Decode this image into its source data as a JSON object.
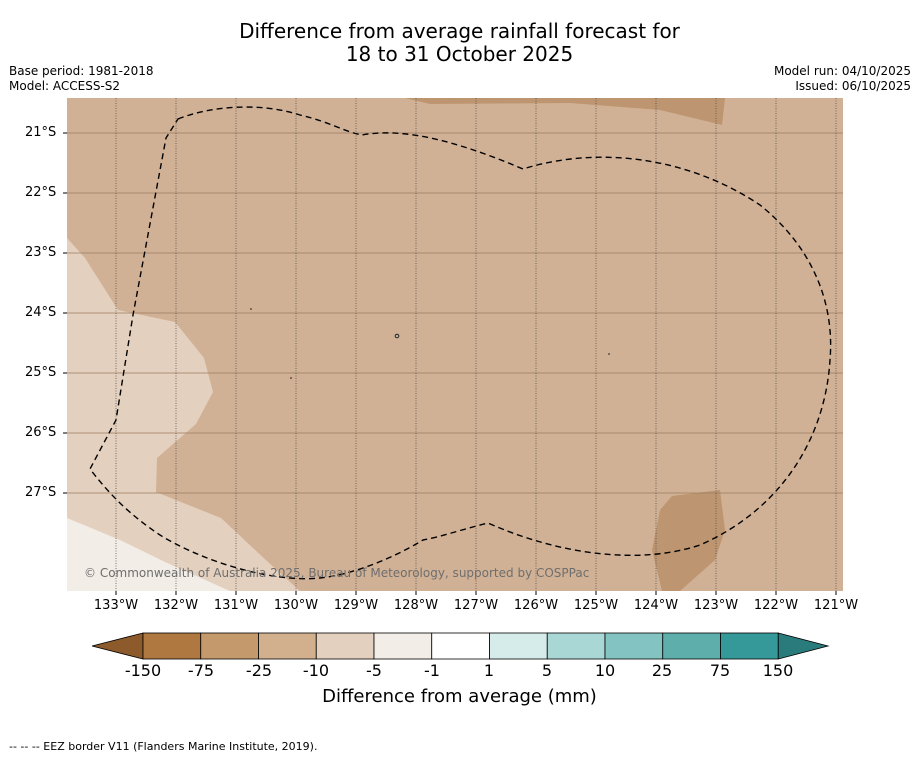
{
  "title_line1": "Difference from average rainfall forecast for",
  "title_line2": "18 to 31 October 2025",
  "base_period": "Base period: 1981-2018",
  "model": "Model: ACCESS-S2",
  "model_run": "Model run: 04/10/2025",
  "issued": "Issued: 06/10/2025",
  "copyright": "© Commonwealth of Australia 2025, Bureau of Meteorology, supported by COSPPac",
  "lon_labels": [
    "133°W",
    "132°W",
    "131°W",
    "130°W",
    "129°W",
    "128°W",
    "127°W",
    "126°W",
    "125°W",
    "124°W",
    "123°W",
    "122°W",
    "121°W"
  ],
  "lat_labels": [
    "21°S",
    "22°S",
    "23°S",
    "24°S",
    "25°S",
    "26°S",
    "27°S"
  ],
  "colorbar": {
    "labels": [
      "-150",
      "-75",
      "-25",
      "-10",
      "-5",
      "-1",
      "1",
      "5",
      "10",
      "25",
      "75",
      "150"
    ],
    "colors": [
      "#8c5a2b",
      "#ae7840",
      "#c49a6c",
      "#d2b08e",
      "#e4d0be",
      "#f2ede6",
      "#ffffff",
      "#d6ecea",
      "#a9d7d6",
      "#83c4c2",
      "#5eaeac",
      "#35999a",
      "#2a7c7c"
    ],
    "title": "Difference from average (mm)"
  },
  "legend_footer": "--  --  -- EEZ border V11 (Flanders Marine Institute, 2019).",
  "map_colors": {
    "base": "#d1b195",
    "light": "#e4d0be",
    "lightest": "#f2ede6",
    "dark": "#bd9570"
  }
}
